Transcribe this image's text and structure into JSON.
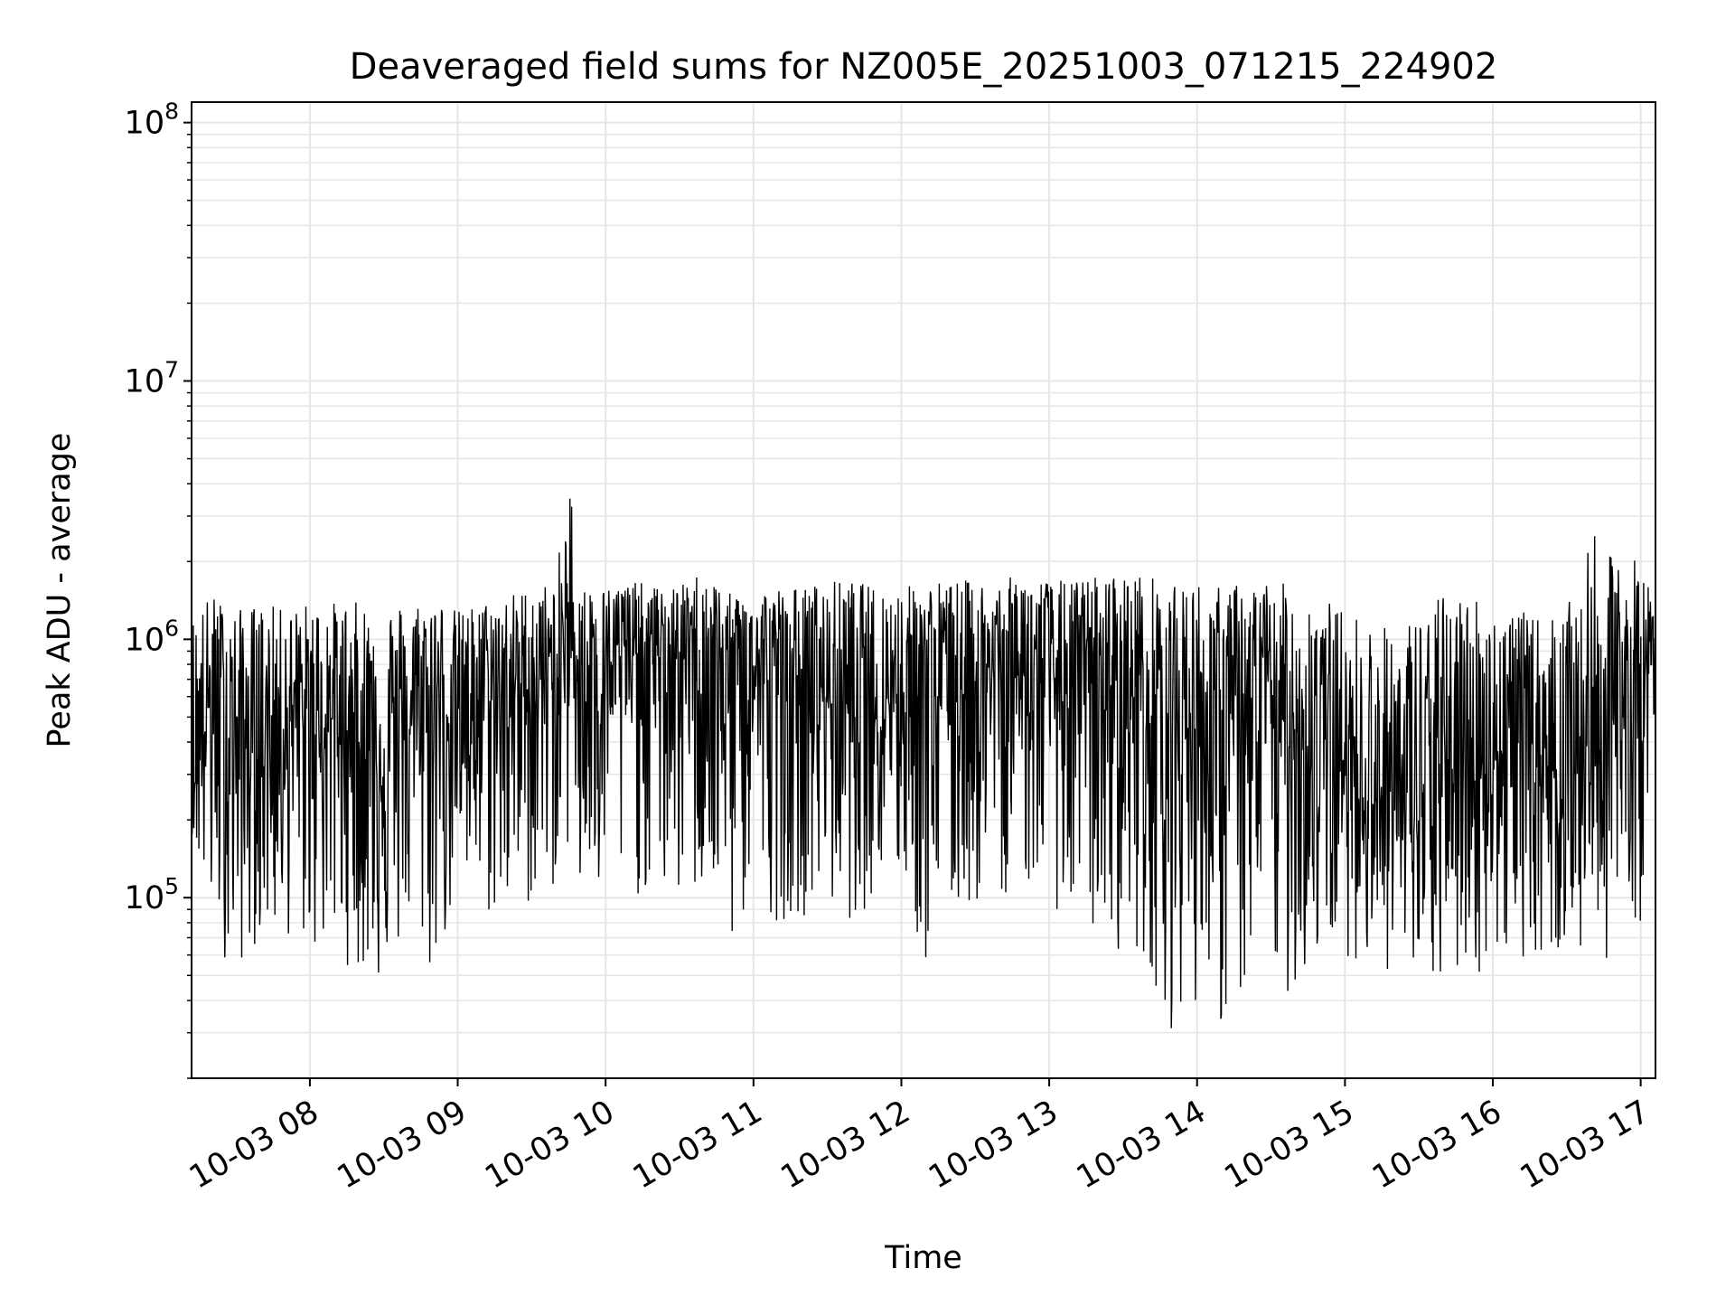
{
  "chart_data": {
    "type": "line",
    "title": "Deaveraged field sums for NZ005E_20251003_071215_224902",
    "xlabel": "Time",
    "ylabel": "Peak ADU - average",
    "x_axis": {
      "kind": "datetime",
      "range": [
        "2025-10-03 07:12",
        "2025-10-03 17:06"
      ],
      "ticks": [
        {
          "value": "2025-10-03 08:00",
          "label": "10-03 08"
        },
        {
          "value": "2025-10-03 09:00",
          "label": "10-03 09"
        },
        {
          "value": "2025-10-03 10:00",
          "label": "10-03 10"
        },
        {
          "value": "2025-10-03 11:00",
          "label": "10-03 11"
        },
        {
          "value": "2025-10-03 12:00",
          "label": "10-03 12"
        },
        {
          "value": "2025-10-03 13:00",
          "label": "10-03 13"
        },
        {
          "value": "2025-10-03 14:00",
          "label": "10-03 14"
        },
        {
          "value": "2025-10-03 15:00",
          "label": "10-03 15"
        },
        {
          "value": "2025-10-03 16:00",
          "label": "10-03 16"
        },
        {
          "value": "2025-10-03 17:00",
          "label": "10-03 17"
        }
      ]
    },
    "y_axis": {
      "scale": "log",
      "range": [
        20000,
        120000000
      ],
      "ticks": [
        {
          "value": 100000,
          "base": "10",
          "exp": "5"
        },
        {
          "value": 1000000,
          "base": "10",
          "exp": "6"
        },
        {
          "value": 10000000,
          "base": "10",
          "exp": "7"
        },
        {
          "value": 100000000,
          "base": "10",
          "exp": "8"
        }
      ]
    },
    "grid": {
      "major": true,
      "minor_y": true
    },
    "line_color": "#000000",
    "grid_color": "#e6e6e6",
    "series": [
      {
        "x": [
          "2025-10-03 07:12",
          "2025-10-03 07:20",
          "2025-10-03 07:30",
          "2025-10-03 07:40",
          "2025-10-03 07:50",
          "2025-10-03 08:00",
          "2025-10-03 08:10",
          "2025-10-03 08:20",
          "2025-10-03 08:30",
          "2025-10-03 08:40",
          "2025-10-03 08:50",
          "2025-10-03 09:00",
          "2025-10-03 09:10",
          "2025-10-03 09:20",
          "2025-10-03 09:30",
          "2025-10-03 09:40",
          "2025-10-03 09:45",
          "2025-10-03 09:50",
          "2025-10-03 10:00",
          "2025-10-03 10:10",
          "2025-10-03 10:20",
          "2025-10-03 10:30",
          "2025-10-03 10:40",
          "2025-10-03 10:50",
          "2025-10-03 11:00",
          "2025-10-03 11:10",
          "2025-10-03 11:20",
          "2025-10-03 11:30",
          "2025-10-03 11:40",
          "2025-10-03 11:50",
          "2025-10-03 12:00",
          "2025-10-03 12:10",
          "2025-10-03 12:20",
          "2025-10-03 12:30",
          "2025-10-03 12:40",
          "2025-10-03 12:50",
          "2025-10-03 13:00",
          "2025-10-03 13:10",
          "2025-10-03 13:20",
          "2025-10-03 13:30",
          "2025-10-03 13:40",
          "2025-10-03 13:50",
          "2025-10-03 14:00",
          "2025-10-03 14:10",
          "2025-10-03 14:20",
          "2025-10-03 14:30",
          "2025-10-03 14:40",
          "2025-10-03 14:50",
          "2025-10-03 15:00",
          "2025-10-03 15:10",
          "2025-10-03 15:20",
          "2025-10-03 15:30",
          "2025-10-03 15:40",
          "2025-10-03 15:50",
          "2025-10-03 16:00",
          "2025-10-03 16:10",
          "2025-10-03 16:20",
          "2025-10-03 16:30",
          "2025-10-03 16:40",
          "2025-10-03 16:50",
          "2025-10-03 17:00",
          "2025-10-03 17:06"
        ],
        "y": [
          250000,
          600000,
          400000,
          350000,
          500000,
          450000,
          500000,
          400000,
          350000,
          450000,
          550000,
          500000,
          600000,
          600000,
          650000,
          700000,
          1000000,
          800000,
          800000,
          900000,
          850000,
          850000,
          800000,
          700000,
          700000,
          700000,
          650000,
          600000,
          550000,
          600000,
          650000,
          650000,
          600000,
          700000,
          700000,
          750000,
          700000,
          650000,
          600000,
          650000,
          550000,
          500000,
          450000,
          400000,
          450000,
          500000,
          450000,
          350000,
          300000,
          250000,
          220000,
          200000,
          250000,
          350000,
          350000,
          400000,
          350000,
          300000,
          350000,
          500000,
          600000,
          900000
        ],
        "upper": [
          1300000,
          1500000,
          1300000,
          1400000,
          1300000,
          1400000,
          1400000,
          1400000,
          1400000,
          1400000,
          1500000,
          1300000,
          1400000,
          1500000,
          1600000,
          1700000,
          4800000,
          1600000,
          1600000,
          1700000,
          1600000,
          1600000,
          1900000,
          1500000,
          1600000,
          1600000,
          1600000,
          1700000,
          1700000,
          1600000,
          1600000,
          1700000,
          1700000,
          1700000,
          1700000,
          1800000,
          1700000,
          1700000,
          1800000,
          1800000,
          1800000,
          1600000,
          1700000,
          1600000,
          1700000,
          1700000,
          1600000,
          1500000,
          1300000,
          1200000,
          1100000,
          1300000,
          1500000,
          1600000,
          1300000,
          1300000,
          1200000,
          1300000,
          2600000,
          2000000,
          2100000,
          1300000
        ],
        "lower": [
          180000,
          70000,
          50000,
          70000,
          70000,
          60000,
          60000,
          50000,
          45000,
          70000,
          45000,
          100000,
          80000,
          80000,
          90000,
          110000,
          150000,
          80000,
          90000,
          100000,
          100000,
          90000,
          100000,
          55000,
          100000,
          80000,
          85000,
          90000,
          80000,
          100000,
          110000,
          50000,
          80000,
          90000,
          100000,
          110000,
          100000,
          70000,
          70000,
          60000,
          55000,
          30000,
          40000,
          30000,
          40000,
          45000,
          40000,
          60000,
          60000,
          55000,
          50000,
          40000,
          45000,
          50000,
          50000,
          60000,
          55000,
          60000,
          55000,
          60000,
          80000,
          600000
        ]
      }
    ]
  }
}
